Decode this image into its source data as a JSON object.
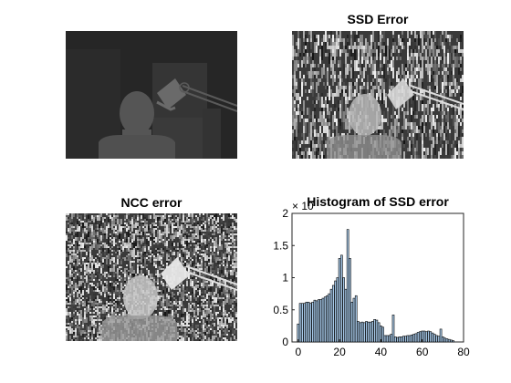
{
  "figure": {
    "ssd_title": "SSD Error",
    "ncc_title": "NCC error",
    "hist_title": "Histogram of SSD error",
    "exponent_label": "× 10"
  },
  "colors": {
    "bar_fill": "#a6c8e8",
    "bar_edge": "#000000",
    "axes": "#262626",
    "dark_gray_bg": "#2a2a2a"
  },
  "chart_data": {
    "type": "bar",
    "title": "Histogram of SSD error",
    "xlabel": "",
    "ylabel": "",
    "xlim": [
      -3,
      80
    ],
    "ylim": [
      0,
      2
    ],
    "xticks": [
      0,
      20,
      40,
      60,
      80
    ],
    "yticks": [
      0,
      0.5,
      1,
      1.5,
      2
    ],
    "y_exponent_note": "× 10",
    "x": [
      0,
      1,
      2,
      3,
      4,
      5,
      6,
      7,
      8,
      9,
      10,
      11,
      12,
      13,
      14,
      15,
      16,
      17,
      18,
      19,
      20,
      21,
      22,
      23,
      24,
      25,
      26,
      27,
      28,
      29,
      30,
      31,
      32,
      33,
      34,
      35,
      36,
      37,
      38,
      39,
      40,
      41,
      42,
      43,
      44,
      45,
      46,
      47,
      48,
      49,
      50,
      51,
      52,
      53,
      54,
      55,
      56,
      57,
      58,
      59,
      60,
      61,
      62,
      63,
      64,
      65,
      66,
      67,
      68,
      69,
      70,
      71,
      72,
      73,
      74,
      75
    ],
    "values": [
      0.28,
      0.6,
      0.6,
      0.6,
      0.62,
      0.62,
      0.6,
      0.62,
      0.65,
      0.64,
      0.66,
      0.66,
      0.68,
      0.7,
      0.72,
      0.75,
      0.82,
      0.88,
      0.95,
      1.0,
      1.3,
      1.35,
      1.0,
      0.82,
      1.75,
      1.3,
      0.62,
      0.68,
      0.72,
      0.32,
      0.3,
      0.31,
      0.3,
      0.32,
      0.31,
      0.31,
      0.32,
      0.35,
      0.34,
      0.3,
      0.25,
      0.23,
      0.1,
      0.1,
      0.1,
      0.12,
      0.42,
      0.08,
      0.07,
      0.08,
      0.08,
      0.09,
      0.09,
      0.1,
      0.1,
      0.11,
      0.12,
      0.13,
      0.15,
      0.16,
      0.17,
      0.17,
      0.16,
      0.17,
      0.16,
      0.14,
      0.12,
      0.1,
      0.09,
      0.2,
      0.08,
      0.06,
      0.05,
      0.04,
      0.03,
      0.02
    ]
  }
}
